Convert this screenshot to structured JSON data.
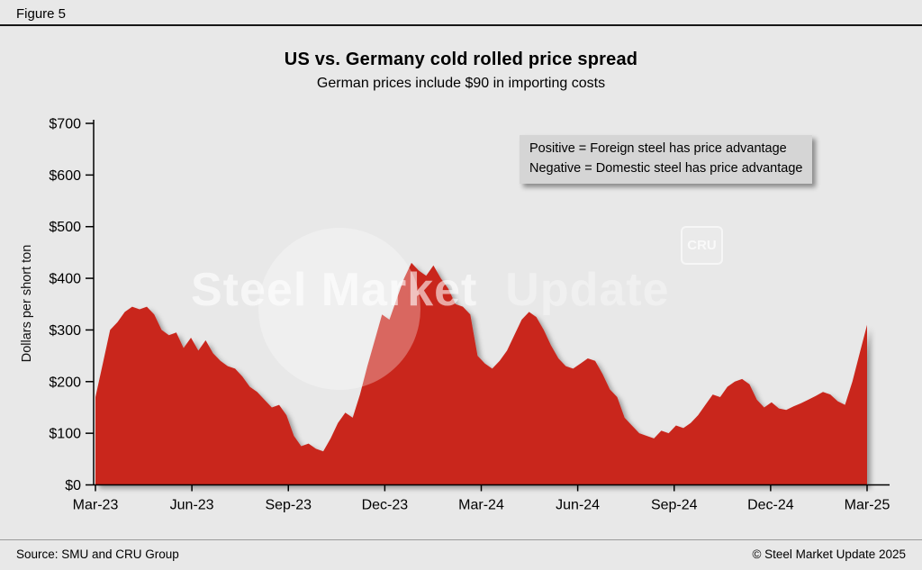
{
  "figure_label": "Figure 5",
  "title": "US vs. Germany cold rolled price spread",
  "subtitle": "German prices include $90 in importing costs",
  "y_axis_title": "Dollars per short ton",
  "annotation": {
    "line1": "Positive = Foreign steel has price advantage",
    "line2": "Negative = Domestic steel has price advantage"
  },
  "watermark": {
    "text_primary": "Steel Market",
    "text_secondary": "Update",
    "badge": "CRU"
  },
  "footer": {
    "source": "Source: SMU and CRU Group",
    "copyright": "© Steel Market Update 2025"
  },
  "colors": {
    "background": "#e8e8e8",
    "area": "#c9271d",
    "annotation_bg": "#d5d5d5",
    "axis": "#000000"
  },
  "chart_data": {
    "type": "area",
    "title": "US vs. Germany cold rolled price spread",
    "subtitle": "German prices include $90 in importing costs",
    "ylabel": "Dollars per short ton",
    "ylim": [
      0,
      700
    ],
    "y_ticks": [
      0,
      100,
      200,
      300,
      400,
      500,
      600,
      700
    ],
    "y_tick_labels": [
      "$0",
      "$100",
      "$200",
      "$300",
      "$400",
      "$500",
      "$600",
      "$700"
    ],
    "x_tick_labels": [
      "Mar-23",
      "Jun-23",
      "Sep-23",
      "Dec-23",
      "Mar-24",
      "Jun-24",
      "Sep-24",
      "Dec-24",
      "Mar-25"
    ],
    "x_range": [
      "Mar-23",
      "Mar-25"
    ],
    "frequency": "weekly",
    "grid": false,
    "legend": "none",
    "area_color": "#c9271d",
    "series": [
      {
        "name": "US minus Germany cold rolled price spread ($ per short ton)",
        "values": [
          170,
          235,
          300,
          315,
          335,
          345,
          340,
          345,
          330,
          300,
          290,
          295,
          265,
          285,
          260,
          280,
          255,
          240,
          230,
          225,
          210,
          190,
          180,
          165,
          150,
          155,
          135,
          95,
          75,
          80,
          70,
          65,
          90,
          120,
          140,
          130,
          175,
          230,
          280,
          330,
          320,
          360,
          400,
          430,
          415,
          405,
          425,
          400,
          380,
          350,
          345,
          330,
          250,
          235,
          225,
          240,
          260,
          290,
          320,
          335,
          325,
          300,
          270,
          245,
          230,
          225,
          235,
          245,
          240,
          215,
          185,
          170,
          130,
          115,
          100,
          95,
          90,
          105,
          100,
          115,
          110,
          120,
          135,
          155,
          175,
          170,
          190,
          200,
          205,
          195,
          165,
          150,
          160,
          148,
          145,
          152,
          158,
          165,
          172,
          180,
          175,
          162,
          155,
          200,
          255,
          310
        ]
      }
    ]
  }
}
